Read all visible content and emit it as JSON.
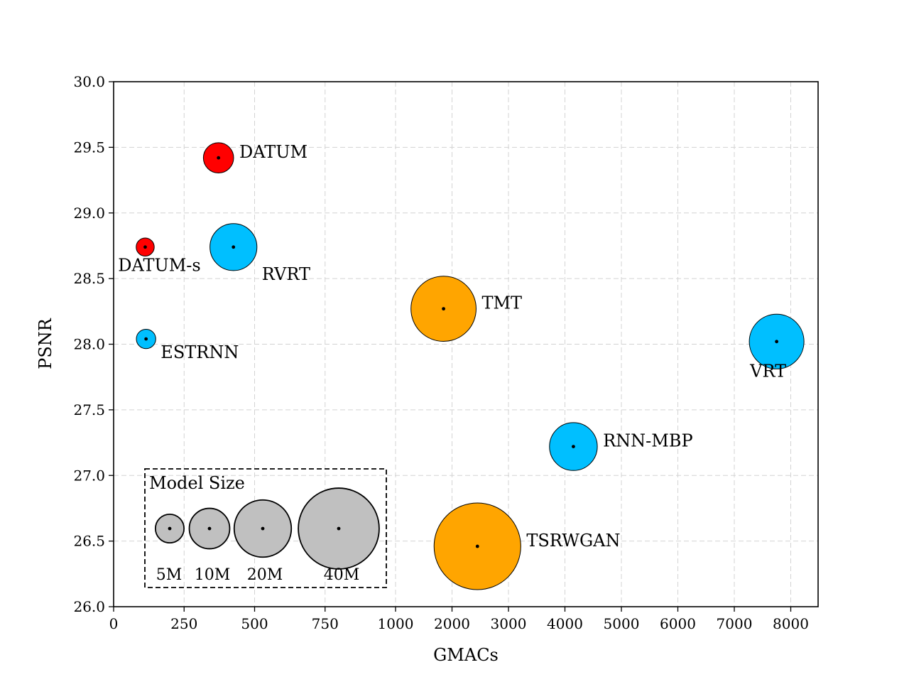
{
  "chart_data": {
    "type": "scatter",
    "xlabel": "GMACs",
    "ylabel": "PSNR",
    "x_scale": "piecewise: linear 0–1000, then linear 1000–8000 (compressed)",
    "xlim": [
      0,
      8500
    ],
    "ylim": [
      26.0,
      30.0
    ],
    "x_ticks": [
      {
        "value": 0,
        "label": "0"
      },
      {
        "value": 250,
        "label": "250"
      },
      {
        "value": 500,
        "label": "500"
      },
      {
        "value": 750,
        "label": "750"
      },
      {
        "value": 1000,
        "label": "1000"
      },
      {
        "value": 2000,
        "label": "2000"
      },
      {
        "value": 3000,
        "label": "3000"
      },
      {
        "value": 4000,
        "label": "4000"
      },
      {
        "value": 5000,
        "label": "5000"
      },
      {
        "value": 6000,
        "label": "6000"
      },
      {
        "value": 7000,
        "label": "7000"
      },
      {
        "value": 8000,
        "label": "8000"
      }
    ],
    "y_ticks": [
      {
        "value": 26.0,
        "label": "26.0"
      },
      {
        "value": 26.5,
        "label": "26.5"
      },
      {
        "value": 27.0,
        "label": "27.0"
      },
      {
        "value": 27.5,
        "label": "27.5"
      },
      {
        "value": 28.0,
        "label": "28.0"
      },
      {
        "value": 28.5,
        "label": "28.5"
      },
      {
        "value": 29.0,
        "label": "29.0"
      },
      {
        "value": 29.5,
        "label": "29.5"
      },
      {
        "value": 30.0,
        "label": "30.0"
      }
    ],
    "grid": true,
    "points": [
      {
        "name": "DATUM",
        "gmacs": 372,
        "psnr": 29.42,
        "params_m": 5.6,
        "color": "#ff0000",
        "label_pos": "right"
      },
      {
        "name": "DATUM-s",
        "gmacs": 112,
        "psnr": 28.74,
        "params_m": 2.0,
        "color": "#ff0000",
        "label_pos": "below"
      },
      {
        "name": "RVRT",
        "gmacs": 425,
        "psnr": 28.74,
        "params_m": 13.5,
        "color": "#00bfff",
        "label_pos": "below-right"
      },
      {
        "name": "ESTRNN",
        "gmacs": 115,
        "psnr": 28.04,
        "params_m": 2.3,
        "color": "#00bfff",
        "label_pos": "below-right"
      },
      {
        "name": "TMT",
        "gmacs": 1850,
        "psnr": 28.27,
        "params_m": 26.0,
        "color": "#ffa500",
        "label_pos": "right"
      },
      {
        "name": "VRT",
        "gmacs": 7750,
        "psnr": 28.02,
        "params_m": 18.3,
        "color": "#00bfff",
        "label_pos": "below-left"
      },
      {
        "name": "RNN-MBP",
        "gmacs": 4150,
        "psnr": 27.22,
        "params_m": 14.0,
        "color": "#00bfff",
        "label_pos": "right"
      },
      {
        "name": "TSRWGAN",
        "gmacs": 2450,
        "psnr": 26.46,
        "params_m": 46.0,
        "color": "#ffa500",
        "label_pos": "right"
      }
    ],
    "size_legend": {
      "title": "Model  Size",
      "entries": [
        {
          "label": "5M",
          "params_m": 5
        },
        {
          "label": "10M",
          "params_m": 10
        },
        {
          "label": "20M",
          "params_m": 20
        },
        {
          "label": "40M",
          "params_m": 40
        }
      ],
      "color": "#c0c0c0",
      "placement": "bottom-left"
    }
  }
}
